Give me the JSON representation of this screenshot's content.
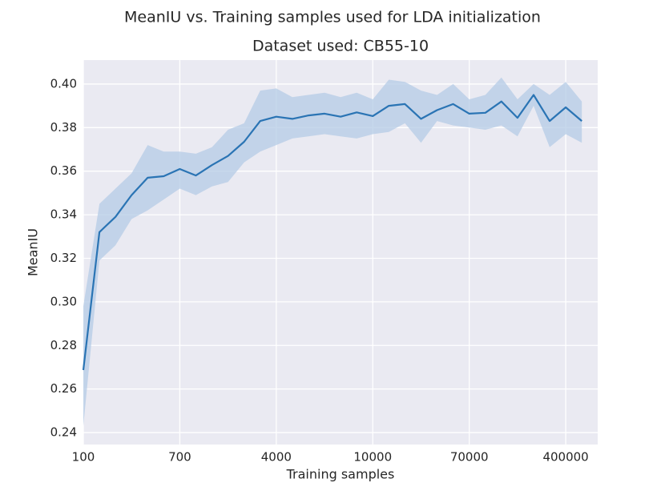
{
  "chart_data": {
    "type": "line",
    "title": "MeanIU vs. Training samples used for LDA initialization",
    "subtitle": "Dataset used: CB55-10",
    "xlabel": "Training samples",
    "ylabel": "MeanIU",
    "categories": [
      "100",
      null,
      null,
      null,
      null,
      null,
      "700",
      null,
      null,
      null,
      null,
      null,
      "4000",
      null,
      null,
      null,
      null,
      null,
      "10000",
      null,
      null,
      null,
      null,
      null,
      "70000",
      null,
      null,
      null,
      null,
      null,
      "400000",
      null
    ],
    "color": "#2a74b4",
    "band_color": "#b4cbe6",
    "values": [
      0.2687,
      0.332,
      0.339,
      0.349,
      0.357,
      0.3577,
      0.361,
      0.358,
      0.3628,
      0.367,
      0.3735,
      0.383,
      0.385,
      0.384,
      0.3856,
      0.3864,
      0.385,
      0.387,
      0.3853,
      0.39,
      0.3908,
      0.384,
      0.388,
      0.3908,
      0.3864,
      0.3868,
      0.392,
      0.3845,
      0.395,
      0.383,
      0.3893,
      0.383
    ],
    "upper": [
      0.298,
      0.345,
      0.352,
      0.359,
      0.372,
      0.369,
      0.369,
      0.368,
      0.371,
      0.379,
      0.382,
      0.397,
      0.398,
      0.394,
      0.395,
      0.396,
      0.394,
      0.396,
      0.393,
      0.402,
      0.401,
      0.397,
      0.395,
      0.4,
      0.393,
      0.395,
      0.403,
      0.393,
      0.4,
      0.395,
      0.401,
      0.392
    ],
    "lower": [
      0.243,
      0.319,
      0.326,
      0.338,
      0.342,
      0.347,
      0.352,
      0.349,
      0.353,
      0.355,
      0.364,
      0.369,
      0.372,
      0.375,
      0.376,
      0.377,
      0.376,
      0.375,
      0.377,
      0.378,
      0.382,
      0.373,
      0.383,
      0.381,
      0.38,
      0.379,
      0.381,
      0.376,
      0.39,
      0.371,
      0.377,
      0.373
    ],
    "ylim": [
      0.2345,
      0.411
    ],
    "yticks": [
      0.24,
      0.26,
      0.28,
      {
        "value": 0.3,
        "label": "0.30"
      },
      0.32,
      0.34,
      0.36,
      0.38,
      {
        "value": 0.4,
        "label": "0.40"
      }
    ],
    "grid": true
  }
}
